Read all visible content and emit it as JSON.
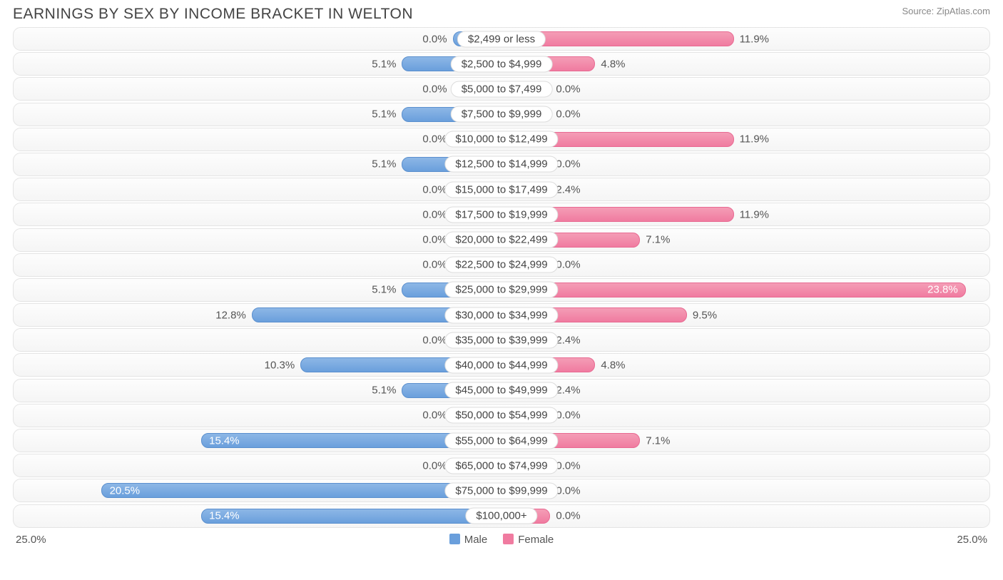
{
  "title": "EARNINGS BY SEX BY INCOME BRACKET IN WELTON",
  "source_prefix": "Source: ",
  "source_name": "ZipAtlas.com",
  "chart": {
    "type": "diverging-bar",
    "max_pct": 25.0,
    "min_bar_pct": 2.5,
    "colors": {
      "male_bar_top": "#8db7e6",
      "male_bar_bottom": "#6a9fdc",
      "male_border": "#5a8fce",
      "female_bar_top": "#f49db6",
      "female_bar_bottom": "#f07ba0",
      "female_border": "#e86a92",
      "row_bg_top": "#fdfdfd",
      "row_bg_bottom": "#f5f5f5",
      "row_border": "#e4e4e4",
      "text": "#555555",
      "title_text": "#444444",
      "source_text": "#888888",
      "label_bg": "#ffffff",
      "label_border": "#dcdcdc"
    },
    "rows": [
      {
        "label": "$2,499 or less",
        "male": 0.0,
        "female": 11.9
      },
      {
        "label": "$2,500 to $4,999",
        "male": 5.1,
        "female": 4.8
      },
      {
        "label": "$5,000 to $7,499",
        "male": 0.0,
        "female": 0.0
      },
      {
        "label": "$7,500 to $9,999",
        "male": 5.1,
        "female": 0.0
      },
      {
        "label": "$10,000 to $12,499",
        "male": 0.0,
        "female": 11.9
      },
      {
        "label": "$12,500 to $14,999",
        "male": 5.1,
        "female": 0.0
      },
      {
        "label": "$15,000 to $17,499",
        "male": 0.0,
        "female": 2.4
      },
      {
        "label": "$17,500 to $19,999",
        "male": 0.0,
        "female": 11.9
      },
      {
        "label": "$20,000 to $22,499",
        "male": 0.0,
        "female": 7.1
      },
      {
        "label": "$22,500 to $24,999",
        "male": 0.0,
        "female": 0.0
      },
      {
        "label": "$25,000 to $29,999",
        "male": 5.1,
        "female": 23.8
      },
      {
        "label": "$30,000 to $34,999",
        "male": 12.8,
        "female": 9.5
      },
      {
        "label": "$35,000 to $39,999",
        "male": 0.0,
        "female": 2.4
      },
      {
        "label": "$40,000 to $44,999",
        "male": 10.3,
        "female": 4.8
      },
      {
        "label": "$45,000 to $49,999",
        "male": 5.1,
        "female": 2.4
      },
      {
        "label": "$50,000 to $54,999",
        "male": 0.0,
        "female": 0.0
      },
      {
        "label": "$55,000 to $64,999",
        "male": 15.4,
        "female": 7.1
      },
      {
        "label": "$65,000 to $74,999",
        "male": 0.0,
        "female": 0.0
      },
      {
        "label": "$75,000 to $99,999",
        "male": 20.5,
        "female": 0.0
      },
      {
        "label": "$100,000+",
        "male": 15.4,
        "female": 0.0
      }
    ]
  },
  "legend": {
    "male": "Male",
    "female": "Female"
  },
  "axis": {
    "left": "25.0%",
    "right": "25.0%"
  }
}
